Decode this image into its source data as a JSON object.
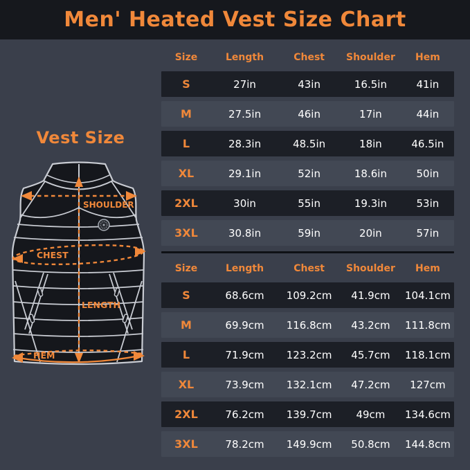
{
  "title": "Men' Heated Vest Size Chart",
  "vest": {
    "heading": "Vest Size",
    "labels": {
      "shoulder": "SHOULDER",
      "chest": "CHEST",
      "length": "LENGTH",
      "hem": "HEM"
    }
  },
  "colors": {
    "accent": "#F0883A",
    "title_bar_bg": "#16181D",
    "page_bg": "#3A3F4B",
    "row_dark": "#1C1F26",
    "row_light": "#424854",
    "value_text": "#FFFFFF",
    "vest_outline": "#C9CCD3",
    "vest_fill": "#15171C"
  },
  "tables": [
    {
      "unit": "inches",
      "headers": [
        "Size",
        "Length",
        "Chest",
        "Shoulder",
        "Hem"
      ],
      "rows": [
        {
          "size": "S",
          "values": [
            "27in",
            "43in",
            "16.5in",
            "41in"
          ]
        },
        {
          "size": "M",
          "values": [
            "27.5in",
            "46in",
            "17in",
            "44in"
          ]
        },
        {
          "size": "L",
          "values": [
            "28.3in",
            "48.5in",
            "18in",
            "46.5in"
          ]
        },
        {
          "size": "XL",
          "values": [
            "29.1in",
            "52in",
            "18.6in",
            "50in"
          ]
        },
        {
          "size": "2XL",
          "values": [
            "30in",
            "55in",
            "19.3in",
            "53in"
          ]
        },
        {
          "size": "3XL",
          "values": [
            "30.8in",
            "59in",
            "20in",
            "57in"
          ]
        }
      ]
    },
    {
      "unit": "centimeters",
      "headers": [
        "Size",
        "Length",
        "Chest",
        "Shoulder",
        "Hem"
      ],
      "rows": [
        {
          "size": "S",
          "values": [
            "68.6cm",
            "109.2cm",
            "41.9cm",
            "104.1cm"
          ]
        },
        {
          "size": "M",
          "values": [
            "69.9cm",
            "116.8cm",
            "43.2cm",
            "111.8cm"
          ]
        },
        {
          "size": "L",
          "values": [
            "71.9cm",
            "123.2cm",
            "45.7cm",
            "118.1cm"
          ]
        },
        {
          "size": "XL",
          "values": [
            "73.9cm",
            "132.1cm",
            "47.2cm",
            "127cm"
          ]
        },
        {
          "size": "2XL",
          "values": [
            "76.2cm",
            "139.7cm",
            "49cm",
            "134.6cm"
          ]
        },
        {
          "size": "3XL",
          "values": [
            "78.2cm",
            "149.9cm",
            "50.8cm",
            "144.8cm"
          ]
        }
      ]
    }
  ],
  "chart_data": [
    {
      "type": "table",
      "title": "Men' Heated Vest Size Chart (inches)",
      "columns": [
        "Size",
        "Length",
        "Chest",
        "Shoulder",
        "Hem"
      ],
      "rows": [
        [
          "S",
          "27in",
          "43in",
          "16.5in",
          "41in"
        ],
        [
          "M",
          "27.5in",
          "46in",
          "17in",
          "44in"
        ],
        [
          "L",
          "28.3in",
          "48.5in",
          "18in",
          "46.5in"
        ],
        [
          "XL",
          "29.1in",
          "52in",
          "18.6in",
          "50in"
        ],
        [
          "2XL",
          "30in",
          "55in",
          "19.3in",
          "53in"
        ],
        [
          "3XL",
          "30.8in",
          "59in",
          "20in",
          "57in"
        ]
      ]
    },
    {
      "type": "table",
      "title": "Men' Heated Vest Size Chart (centimeters)",
      "columns": [
        "Size",
        "Length",
        "Chest",
        "Shoulder",
        "Hem"
      ],
      "rows": [
        [
          "S",
          "68.6cm",
          "109.2cm",
          "41.9cm",
          "104.1cm"
        ],
        [
          "M",
          "69.9cm",
          "116.8cm",
          "43.2cm",
          "111.8cm"
        ],
        [
          "L",
          "71.9cm",
          "123.2cm",
          "45.7cm",
          "118.1cm"
        ],
        [
          "XL",
          "73.9cm",
          "132.1cm",
          "47.2cm",
          "127cm"
        ],
        [
          "2XL",
          "76.2cm",
          "139.7cm",
          "49cm",
          "134.6cm"
        ],
        [
          "3XL",
          "78.2cm",
          "149.9cm",
          "50.8cm",
          "144.8cm"
        ]
      ]
    }
  ]
}
